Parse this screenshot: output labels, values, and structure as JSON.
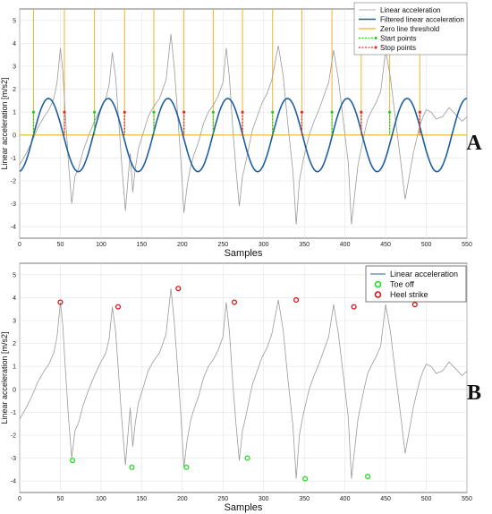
{
  "chart_data": [
    {
      "type": "line",
      "panel_label": "A",
      "xlabel": "Samples",
      "ylabel": "Linear acceleration [m/s2]",
      "xlim": [
        0,
        550
      ],
      "ylim": [
        -4.5,
        5.5
      ],
      "xticks": [
        "0",
        "50",
        "100",
        "150",
        "200",
        "250",
        "300",
        "350",
        "400",
        "450",
        "500",
        "550"
      ],
      "yticks": [
        "5",
        "4",
        "3",
        "2",
        "1",
        "0",
        "-1",
        "-2",
        "-3",
        "-4"
      ],
      "grid": true,
      "legend_position": "top-right",
      "series": [
        {
          "name": "Linear acceleration",
          "color": "#9a9a9a",
          "x": [
            0,
            8,
            15,
            22,
            30,
            36,
            42,
            46,
            50,
            53,
            56,
            60,
            64,
            68,
            72,
            78,
            85,
            92,
            100,
            106,
            110,
            114,
            118,
            122,
            126,
            130,
            134,
            136,
            139,
            142,
            146,
            152,
            158,
            164,
            172,
            180,
            186,
            190,
            194,
            198,
            202,
            206,
            210,
            214,
            220,
            226,
            232,
            238,
            244,
            250,
            254,
            258,
            262,
            266,
            270,
            274,
            278,
            282,
            286,
            292,
            298,
            304,
            310,
            318,
            324,
            330,
            336,
            340,
            344,
            348,
            352,
            356,
            362,
            368,
            374,
            380,
            386,
            392,
            398,
            404,
            408,
            412,
            416,
            420,
            424,
            428,
            432,
            438,
            444,
            450,
            456,
            462,
            468,
            474,
            480,
            484,
            488,
            492,
            496,
            500,
            506,
            512,
            520,
            528,
            536,
            544,
            550
          ],
          "y": [
            -1.3,
            -0.8,
            -0.3,
            0.3,
            0.8,
            1.1,
            1.6,
            2.3,
            3.8,
            2.8,
            1.0,
            -1.2,
            -3.0,
            -1.8,
            -1.5,
            -0.7,
            0.0,
            0.6,
            1.2,
            1.6,
            2.2,
            3.6,
            2.5,
            0.5,
            -1.5,
            -3.3,
            -1.6,
            -0.8,
            -2.5,
            -1.5,
            -0.6,
            0.1,
            0.8,
            1.2,
            1.6,
            2.4,
            4.4,
            3.0,
            1.0,
            -1.0,
            -3.4,
            -2.2,
            -1.4,
            -0.9,
            -0.3,
            0.5,
            1.0,
            1.3,
            1.7,
            2.3,
            3.8,
            2.5,
            0.3,
            -1.5,
            -3.1,
            -1.8,
            -1.2,
            -0.5,
            0.2,
            0.8,
            1.4,
            1.8,
            2.4,
            3.9,
            2.6,
            0.4,
            -1.6,
            -3.9,
            -2.0,
            -1.2,
            -0.6,
            0.0,
            0.6,
            1.1,
            1.7,
            2.3,
            3.7,
            2.4,
            0.6,
            -1.2,
            -3.9,
            -2.6,
            -1.3,
            -0.6,
            0.1,
            0.7,
            1.0,
            1.4,
            1.9,
            3.7,
            2.5,
            0.7,
            -1.0,
            -2.8,
            -1.6,
            -0.8,
            -0.2,
            0.4,
            0.8,
            1.1,
            1.0,
            0.7,
            0.8,
            1.2,
            0.9,
            0.6,
            0.8
          ]
        },
        {
          "name": "Filtered linear acceleration",
          "color": "#1f5fa0",
          "type": "sine",
          "amplitude": 1.6,
          "period": 73.5,
          "phase_zero_crossing": 17
        },
        {
          "name": "Zero line threshold",
          "color": "#f0b323",
          "y": 0
        },
        {
          "name": "Start points",
          "color": "#2ec92e",
          "x": [
            17,
            92,
            165,
            238,
            311,
            384,
            455
          ]
        },
        {
          "name": "Stop points",
          "color": "#e03030",
          "x": [
            55,
            129,
            202,
            274,
            347,
            420,
            492
          ]
        }
      ],
      "vertical_lines_x": [
        17,
        55,
        92,
        129,
        165,
        202,
        238,
        274,
        311,
        347,
        384,
        420,
        455,
        492
      ]
    },
    {
      "type": "line",
      "panel_label": "B",
      "xlabel": "Samples",
      "ylabel": "Linear acceleration [m/s2]",
      "xlim": [
        0,
        550
      ],
      "ylim": [
        -4.5,
        5.5
      ],
      "xticks": [
        "0",
        "50",
        "100",
        "150",
        "200",
        "250",
        "300",
        "350",
        "400",
        "450",
        "500",
        "550"
      ],
      "yticks": [
        "5",
        "4",
        "3",
        "2",
        "1",
        "0",
        "-1",
        "-2",
        "-3",
        "-4"
      ],
      "grid": true,
      "legend_position": "top-right",
      "series": [
        {
          "name": "Linear acceleration",
          "color": "#9a9a9a"
        },
        {
          "name": "Toe off",
          "color": "#22dd22",
          "x": [
            65,
            138,
            205,
            280,
            351,
            428
          ],
          "y": [
            -3.1,
            -3.4,
            -3.4,
            -3.0,
            -3.9,
            -3.8
          ]
        },
        {
          "name": "Heel strike",
          "color": "#dd1111",
          "x": [
            50,
            121,
            195,
            264,
            340,
            411,
            486
          ],
          "y": [
            3.8,
            3.6,
            4.4,
            3.8,
            3.9,
            3.6,
            3.7
          ]
        }
      ]
    }
  ]
}
